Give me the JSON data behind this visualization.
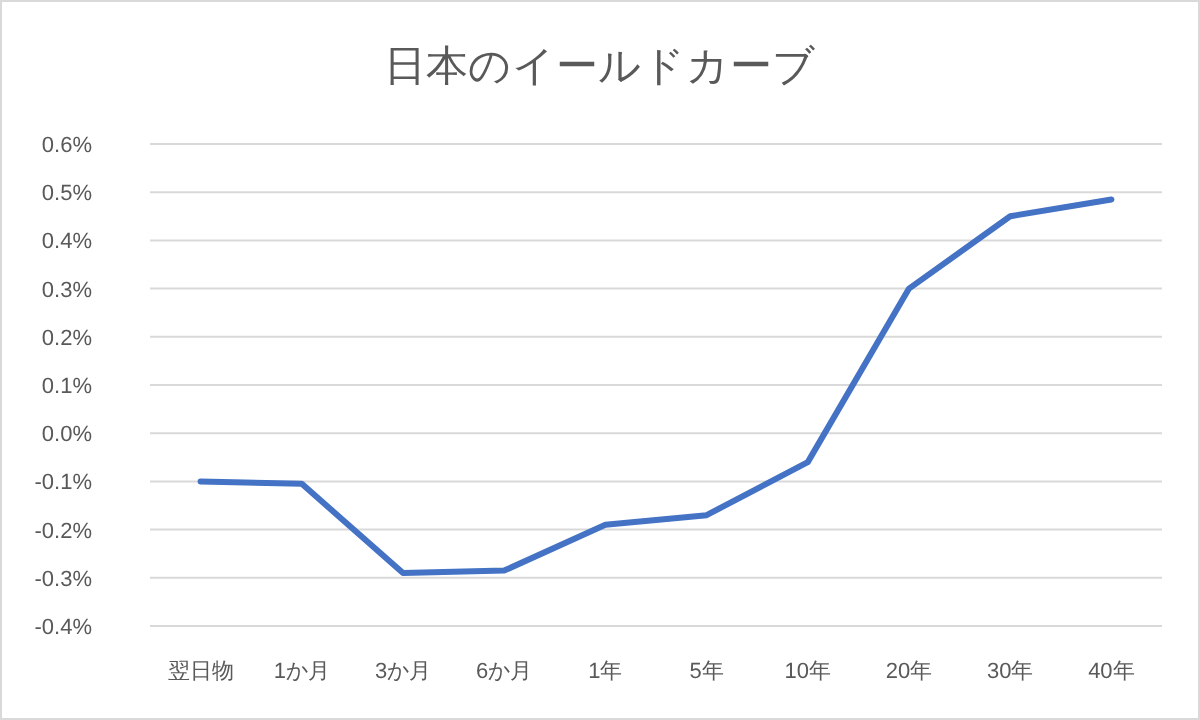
{
  "chart_data": {
    "type": "line",
    "title": "日本のイールドカーブ",
    "categories": [
      "翌日物",
      "1か月",
      "3か月",
      "6か月",
      "1年",
      "5年",
      "10年",
      "20年",
      "30年",
      "40年"
    ],
    "series": [
      {
        "color": "#4472c4",
        "values": [
          -0.1,
          -0.105,
          -0.29,
          -0.285,
          -0.19,
          -0.17,
          -0.06,
          0.3,
          0.45,
          0.485
        ]
      }
    ],
    "ylim": [
      -0.4,
      0.6
    ],
    "yticks": [
      {
        "value": -0.4,
        "label": "-0.4%"
      },
      {
        "value": -0.3,
        "label": "-0.3%"
      },
      {
        "value": -0.2,
        "label": "-0.2%"
      },
      {
        "value": -0.1,
        "label": "-0.1%"
      },
      {
        "value": 0,
        "label": "0.0%"
      },
      {
        "value": 0.1,
        "label": "0.1%"
      },
      {
        "value": 0.2,
        "label": "0.2%"
      },
      {
        "value": 0.3,
        "label": "0.3%"
      },
      {
        "value": 0.4,
        "label": "0.4%"
      },
      {
        "value": 0.5,
        "label": "0.5%"
      },
      {
        "value": 0.6,
        "label": "0.6%"
      }
    ],
    "grid": "y",
    "marker": "none",
    "line_style": "solid"
  }
}
